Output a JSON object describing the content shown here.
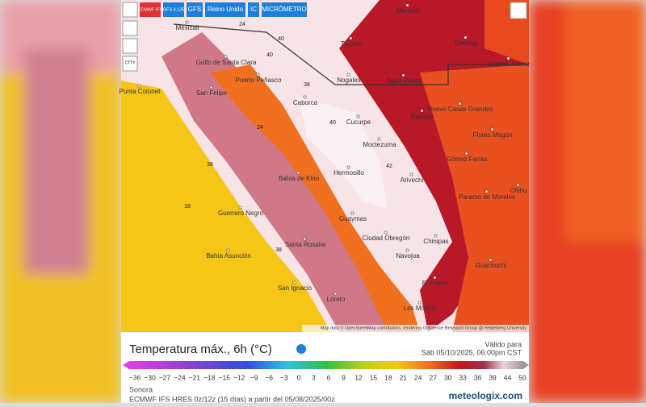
{
  "toolbar": {
    "buttons": [
      "ECMWF IFS",
      "GFS 0.125",
      "GFS",
      "Reino Unido",
      "IC",
      "MICRÓMETRO"
    ],
    "side_icon": "CTTY"
  },
  "map": {
    "places": [
      "Mexicali",
      "Tucson",
      "Morenci",
      "Deming",
      "Ciudad Juárez",
      "Golfo de Santa Clara",
      "Puerto Peñasco",
      "San Felipe",
      "Punta Colonet",
      "Nogales",
      "Agua Prieta",
      "Caborca",
      "Cucurpe",
      "Bavispe",
      "Nuevo Casas Grandes",
      "Moctezuma",
      "Flores Magón",
      "Gómez Farías",
      "Hermosillo",
      "Bahía de Kino",
      "Arivechi",
      "Paramo de Morelos",
      "Chihu",
      "Guerrero Negro",
      "Guaymas",
      "Ciudad Obregón",
      "Chinipas",
      "Santa Rosalía",
      "Bahía Asunción",
      "Navojoa",
      "Guachochi",
      "El Fuerte",
      "San Ignacio",
      "Loreto",
      "Los Mochis"
    ],
    "values": [
      "40",
      "38",
      "24",
      "38",
      "18",
      "40",
      "42",
      "38",
      "40",
      "24"
    ],
    "attribution": "Map data © OpenStreetMap contributors, rendering GIScience Research Group @ Heidelberg University"
  },
  "legend": {
    "title": "Temperatura máx., 6h (°C)",
    "valid_label": "Válido para",
    "valid_time": "Sáb 05/10/2025, 06:00pm CST",
    "ticks": [
      "−36",
      "−30",
      "−27",
      "−24",
      "−21",
      "−18",
      "−15",
      "−12",
      "−9",
      "−6",
      "−3",
      "0",
      "3",
      "6",
      "9",
      "12",
      "15",
      "18",
      "21",
      "24",
      "27",
      "30",
      "33",
      "36",
      "39",
      "44",
      "50"
    ]
  },
  "footer": {
    "region": "Sonora",
    "model": "ECMWF IFS HRES 0z/12z (15 días) a partir del 05/08/2025/00z",
    "brand": "meteologix.com"
  }
}
